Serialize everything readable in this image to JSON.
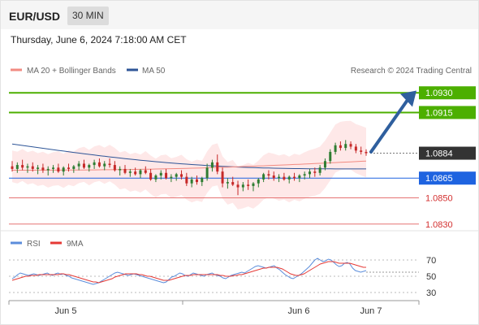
{
  "header": {
    "symbol": "EUR/USD",
    "timeframe": "30 MIN"
  },
  "datetime": "Thursday, June 6, 2024 7:18:00 AM CET",
  "legend": {
    "ma20": {
      "label": "MA 20 + Bollinger Bands",
      "color": "#f28b82"
    },
    "ma50": {
      "label": "MA 50",
      "color": "#2e5597"
    }
  },
  "credit": "Research © 2024 Trading Central",
  "rsi_legend": {
    "rsi": {
      "label": "RSI",
      "color": "#5b8ddb"
    },
    "ma9": {
      "label": "9MA",
      "color": "#e53935"
    }
  },
  "colors": {
    "target_green": "#4caf00",
    "current_price": "#333333",
    "pivot_blue": "#1e63e0",
    "support_red": "#e57373",
    "arrow": "#2f5f9e",
    "candle_up": "#2e7d32",
    "candle_down": "#c62828",
    "band_fill": "#fde0e0"
  },
  "chart_data": [
    {
      "type": "candlestick",
      "title": "EUR/USD",
      "timeframe": "30 MIN",
      "ylim": [
        1.0815,
        1.0945
      ],
      "x_tick_labels": [
        "Jun 5",
        "Jun 6",
        "Jun 7"
      ],
      "candles": [
        [
          1.0874,
          1.0878,
          1.087,
          1.0872
        ],
        [
          1.0872,
          1.0877,
          1.0869,
          1.0875
        ],
        [
          1.0875,
          1.0879,
          1.0871,
          1.0873
        ],
        [
          1.0873,
          1.0876,
          1.0869,
          1.0874
        ],
        [
          1.0874,
          1.0877,
          1.087,
          1.0872
        ],
        [
          1.0872,
          1.0875,
          1.0868,
          1.0873
        ],
        [
          1.0873,
          1.0876,
          1.0869,
          1.0871
        ],
        [
          1.0871,
          1.0874,
          1.0867,
          1.0872
        ],
        [
          1.0872,
          1.0875,
          1.0869,
          1.0873
        ],
        [
          1.0873,
          1.0876,
          1.0869,
          1.087
        ],
        [
          1.087,
          1.0874,
          1.0867,
          1.0873
        ],
        [
          1.0873,
          1.0876,
          1.087,
          1.0872
        ],
        [
          1.0872,
          1.0875,
          1.0869,
          1.0874
        ],
        [
          1.0874,
          1.0878,
          1.0871,
          1.0876
        ],
        [
          1.0876,
          1.0879,
          1.0872,
          1.0873
        ],
        [
          1.0873,
          1.0876,
          1.087,
          1.0875
        ],
        [
          1.0875,
          1.0879,
          1.0872,
          1.0877
        ],
        [
          1.0877,
          1.088,
          1.0873,
          1.0874
        ],
        [
          1.0874,
          1.0878,
          1.0871,
          1.0876
        ],
        [
          1.0876,
          1.088,
          1.0873,
          1.0875
        ],
        [
          1.0875,
          1.0878,
          1.087,
          1.0871
        ],
        [
          1.0871,
          1.0874,
          1.0867,
          1.0872
        ],
        [
          1.0872,
          1.0875,
          1.0868,
          1.0869
        ],
        [
          1.0869,
          1.0872,
          1.0866,
          1.087
        ],
        [
          1.087,
          1.0873,
          1.0867,
          1.0868
        ],
        [
          1.0868,
          1.0872,
          1.0865,
          1.0871
        ],
        [
          1.0871,
          1.0874,
          1.0868,
          1.0869
        ],
        [
          1.0869,
          1.0872,
          1.0863,
          1.0864
        ],
        [
          1.0864,
          1.0868,
          1.0862,
          1.0867
        ],
        [
          1.0867,
          1.0871,
          1.0864,
          1.0869
        ],
        [
          1.0869,
          1.0872,
          1.0864,
          1.0865
        ],
        [
          1.0865,
          1.0868,
          1.0862,
          1.0866
        ],
        [
          1.0866,
          1.0869,
          1.0863,
          1.0868
        ],
        [
          1.0868,
          1.0871,
          1.0864,
          1.0866
        ],
        [
          1.0866,
          1.0869,
          1.0859,
          1.0861
        ],
        [
          1.0861,
          1.0866,
          1.0858,
          1.0864
        ],
        [
          1.0864,
          1.0867,
          1.086,
          1.0862
        ],
        [
          1.0862,
          1.0866,
          1.0859,
          1.0865
        ],
        [
          1.0865,
          1.0876,
          1.0863,
          1.0873
        ],
        [
          1.0873,
          1.0879,
          1.087,
          1.0877
        ],
        [
          1.0877,
          1.0883,
          1.0868,
          1.087
        ],
        [
          1.087,
          1.0873,
          1.0858,
          1.0861
        ],
        [
          1.0861,
          1.0865,
          1.0857,
          1.0862
        ],
        [
          1.0862,
          1.0866,
          1.0859,
          1.086
        ],
        [
          1.086,
          1.0863,
          1.0852,
          1.0858
        ],
        [
          1.0858,
          1.0862,
          1.0855,
          1.086
        ],
        [
          1.086,
          1.0864,
          1.0856,
          1.0859
        ],
        [
          1.0859,
          1.0862,
          1.0855,
          1.0861
        ],
        [
          1.0861,
          1.0865,
          1.0858,
          1.0864
        ],
        [
          1.0864,
          1.0869,
          1.0862,
          1.0868
        ],
        [
          1.0868,
          1.0871,
          1.0864,
          1.0867
        ],
        [
          1.0867,
          1.087,
          1.0863,
          1.0865
        ],
        [
          1.0865,
          1.0868,
          1.0862,
          1.0866
        ],
        [
          1.0866,
          1.0869,
          1.0863,
          1.0864
        ],
        [
          1.0864,
          1.0867,
          1.0861,
          1.0866
        ],
        [
          1.0866,
          1.0869,
          1.0863,
          1.0865
        ],
        [
          1.0865,
          1.0868,
          1.0862,
          1.0867
        ],
        [
          1.0867,
          1.087,
          1.0864,
          1.0868
        ],
        [
          1.0868,
          1.0872,
          1.0865,
          1.087
        ],
        [
          1.087,
          1.0873,
          1.0866,
          1.0869
        ],
        [
          1.0869,
          1.0875,
          1.0867,
          1.0873
        ],
        [
          1.0873,
          1.088,
          1.0871,
          1.0878
        ],
        [
          1.0878,
          1.0887,
          1.0876,
          1.0885
        ],
        [
          1.0885,
          1.0892,
          1.0883,
          1.089
        ],
        [
          1.089,
          1.0893,
          1.0886,
          1.0888
        ],
        [
          1.0888,
          1.0894,
          1.0886,
          1.0891
        ],
        [
          1.0891,
          1.0893,
          1.0887,
          1.0889
        ],
        [
          1.0889,
          1.0891,
          1.0884,
          1.0886
        ],
        [
          1.0886,
          1.0889,
          1.0883,
          1.0885
        ],
        [
          1.0885,
          1.0887,
          1.0882,
          1.0884
        ]
      ],
      "ma50": {
        "name": "MA 50",
        "start": 1.0891,
        "end": 1.0872
      },
      "ma20": {
        "name": "MA 20",
        "start": 1.0871,
        "end": 1.0878
      },
      "levels": [
        {
          "value": "1.0930",
          "kind": "target"
        },
        {
          "value": "1.0915",
          "kind": "target"
        },
        {
          "value": "1.0884",
          "kind": "current"
        },
        {
          "value": "1.0865",
          "kind": "pivot"
        },
        {
          "value": "1.0850",
          "kind": "support"
        },
        {
          "value": "1.0830",
          "kind": "support"
        }
      ],
      "arrow": {
        "from": 1.0885,
        "to": 1.0928
      }
    },
    {
      "type": "line",
      "title": "RSI",
      "ylim": [
        20,
        80
      ],
      "y_ticks": [
        "70",
        "50",
        "30"
      ],
      "series": [
        {
          "name": "RSI",
          "values": [
            47,
            49,
            52,
            54,
            53,
            52,
            51,
            52,
            53,
            52,
            51,
            52,
            53,
            54,
            52,
            51,
            53,
            54,
            52,
            53,
            51,
            50,
            48,
            47,
            46,
            45,
            44,
            43,
            42,
            41,
            40,
            41,
            42,
            44,
            46,
            48,
            50,
            52,
            54,
            55,
            54,
            53,
            52,
            51,
            52,
            53,
            52,
            51,
            50,
            49,
            48,
            47,
            46,
            45,
            44,
            43,
            42,
            43,
            46,
            49,
            50,
            52,
            54,
            53,
            51,
            50,
            52,
            54,
            53,
            52,
            51,
            50,
            52,
            53,
            54,
            52,
            51,
            50,
            48,
            47,
            49,
            51,
            52,
            53,
            54,
            55,
            54,
            56,
            58,
            60,
            62,
            63,
            62,
            61,
            60,
            61,
            62,
            63,
            60,
            58,
            55,
            52,
            50,
            48,
            47,
            49,
            51,
            53,
            56,
            59,
            62,
            66,
            70,
            72,
            70,
            68,
            69,
            71,
            70,
            67,
            64,
            62,
            63,
            66,
            67,
            65,
            60,
            57,
            56,
            55,
            56,
            57
          ]
        },
        {
          "name": "9MA",
          "values": [
            45,
            46,
            47,
            48,
            49,
            50,
            50,
            51,
            51,
            51,
            52,
            52,
            52,
            52,
            52,
            52,
            52,
            52,
            53,
            53,
            52,
            52,
            51,
            50,
            49,
            48,
            47,
            46,
            45,
            44,
            43,
            43,
            42,
            43,
            44,
            45,
            46,
            47,
            49,
            50,
            51,
            52,
            53,
            53,
            53,
            53,
            53,
            52,
            52,
            51,
            50,
            50,
            49,
            48,
            47,
            46,
            45,
            45,
            45,
            46,
            47,
            48,
            49,
            50,
            51,
            51,
            51,
            52,
            52,
            52,
            52,
            52,
            52,
            52,
            52,
            52,
            52,
            51,
            51,
            50,
            50,
            50,
            51,
            51,
            52,
            52,
            53,
            54,
            55,
            56,
            57,
            58,
            59,
            60,
            60,
            61,
            61,
            61,
            61,
            60,
            59,
            57,
            55,
            53,
            52,
            51,
            51,
            52,
            53,
            55,
            57,
            59,
            61,
            63,
            65,
            66,
            67,
            68,
            68,
            68,
            67,
            66,
            66,
            66,
            66,
            66,
            65,
            64,
            63,
            62,
            61,
            61
          ]
        }
      ],
      "reference": 55
    }
  ]
}
